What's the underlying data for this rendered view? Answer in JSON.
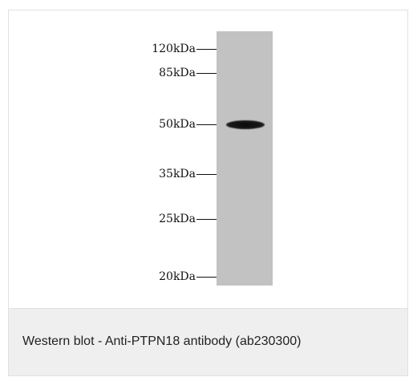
{
  "blot": {
    "markers": [
      {
        "label": "120kDa"
      },
      {
        "label": "85kDa"
      },
      {
        "label": "50kDa"
      },
      {
        "label": "35kDa"
      },
      {
        "label": "25kDa"
      },
      {
        "label": "20kDa"
      }
    ],
    "band_size_kda": 50,
    "lane_color": "#c2c2c2",
    "band_color": "#111111"
  },
  "caption": {
    "text": "Western blot - Anti-PTPN18 antibody (ab230300)"
  }
}
